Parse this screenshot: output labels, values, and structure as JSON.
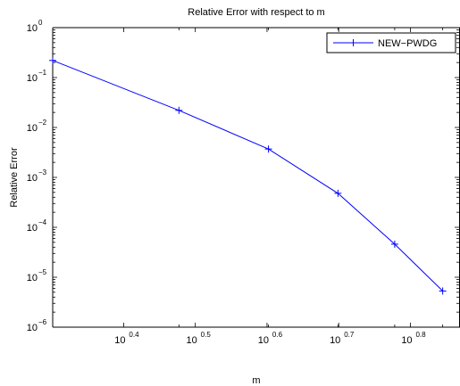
{
  "chart_data": {
    "type": "line",
    "title": "Relative Error with respect to m",
    "xlabel": "m",
    "ylabel": "Relative Error",
    "xscale": "log",
    "yscale": "log",
    "xlim": [
      2.0,
      7.4
    ],
    "ylim": [
      1e-06,
      1
    ],
    "xticks": [
      {
        "value": 2.5119,
        "base": "10",
        "exp": "0.4"
      },
      {
        "value": 3.1623,
        "base": "10",
        "exp": "0.5"
      },
      {
        "value": 3.9811,
        "base": "10",
        "exp": "0.6"
      },
      {
        "value": 5.0119,
        "base": "10",
        "exp": "0.7"
      },
      {
        "value": 6.3096,
        "base": "10",
        "exp": "0.8"
      }
    ],
    "yticks": [
      {
        "value": 1e-06,
        "base": "10",
        "exp": "−6"
      },
      {
        "value": 1e-05,
        "base": "10",
        "exp": "−5"
      },
      {
        "value": 0.0001,
        "base": "10",
        "exp": "−4"
      },
      {
        "value": 0.001,
        "base": "10",
        "exp": "−3"
      },
      {
        "value": 0.01,
        "base": "10",
        "exp": "−2"
      },
      {
        "value": 0.1,
        "base": "10",
        "exp": "−1"
      },
      {
        "value": 1,
        "base": "10",
        "exp": "0"
      }
    ],
    "grid": false,
    "legend_position": "top-right",
    "series": [
      {
        "name": "NEW−PWDG",
        "color": "#0000ff",
        "marker": "plus",
        "x": [
          2,
          3,
          4,
          5,
          6,
          7
        ],
        "y": [
          0.22,
          0.022,
          0.0037,
          0.00048,
          4.6e-05,
          5.3e-06
        ]
      }
    ]
  }
}
